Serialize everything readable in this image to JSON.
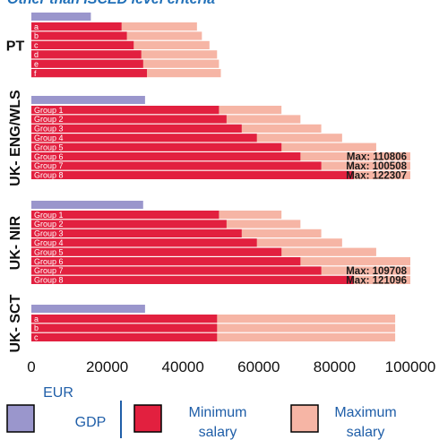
{
  "page": {
    "title": "Other than ISCED level criteria"
  },
  "chart_data": {
    "type": "bar",
    "orientation": "horizontal",
    "stacked": "overlay",
    "xlim": [
      0,
      100000
    ],
    "xticks": [
      "0",
      "20000",
      "40000",
      "60000",
      "80000",
      "100000"
    ],
    "xlabel": "EUR",
    "grid": false,
    "colors": {
      "gdp": "#9a96cc",
      "minimum": "#e2203f",
      "maximum": "#f6b5a5"
    },
    "legend": {
      "placement": "bottom",
      "items": [
        {
          "key": "gdp",
          "label": "GDP"
        },
        {
          "key": "minimum",
          "label": "Minimum salary"
        },
        {
          "key": "maximum",
          "label": "Maximum salary"
        }
      ]
    },
    "groups": [
      {
        "name": "PT",
        "gdp": 15700,
        "rows": [
          {
            "label": "a",
            "min": 23800,
            "max": 43700
          },
          {
            "label": "b",
            "min": 25200,
            "max": 45000
          },
          {
            "label": "c",
            "min": 27000,
            "max": 47000
          },
          {
            "label": "d",
            "min": 29000,
            "max": 49000
          },
          {
            "label": "e",
            "min": 29500,
            "max": 49500
          },
          {
            "label": "f",
            "min": 30500,
            "max": 50000
          }
        ]
      },
      {
        "name": "UK- ENG/WLS",
        "gdp": 30000,
        "rows": [
          {
            "label": "Group 1",
            "min": 49500,
            "max": 66000
          },
          {
            "label": "Group 2",
            "min": 51500,
            "max": 71000
          },
          {
            "label": "Group 3",
            "min": 55500,
            "max": 76500
          },
          {
            "label": "Group 4",
            "min": 59500,
            "max": 82000
          },
          {
            "label": "Group 5",
            "min": 66000,
            "max": 91000
          },
          {
            "label": "Group 6",
            "min": 71000,
            "max": 110806,
            "max_label": "Max: 110806"
          },
          {
            "label": "Group 7",
            "min": 76500,
            "max": 100508,
            "max_label": "Max: 100508"
          },
          {
            "label": "Group 8",
            "min": 85000,
            "max": 122307,
            "max_label": "Max: 122307"
          }
        ]
      },
      {
        "name": "UK- NIR",
        "gdp": 29500,
        "rows": [
          {
            "label": "Group 1",
            "min": 49500,
            "max": 66000
          },
          {
            "label": "Group 2",
            "min": 51500,
            "max": 71000
          },
          {
            "label": "Group 3",
            "min": 55500,
            "max": 76500
          },
          {
            "label": "Group 4",
            "min": 59500,
            "max": 82000
          },
          {
            "label": "Group 5",
            "min": 66000,
            "max": 91000
          },
          {
            "label": "Group 6",
            "min": 71000,
            "max": 100000
          },
          {
            "label": "Group 7",
            "min": 76500,
            "max": 109708,
            "max_label": "Max: 109708"
          },
          {
            "label": "Group 8",
            "min": 85000,
            "max": 121096,
            "max_label": "Max: 121096"
          }
        ]
      },
      {
        "name": "UK- SCT",
        "gdp": 30000,
        "rows": [
          {
            "label": "a",
            "min": 49000,
            "max": 96000
          },
          {
            "label": "b",
            "min": 49000,
            "max": 96000
          },
          {
            "label": "c",
            "min": 49000,
            "max": 96000
          }
        ]
      }
    ]
  }
}
